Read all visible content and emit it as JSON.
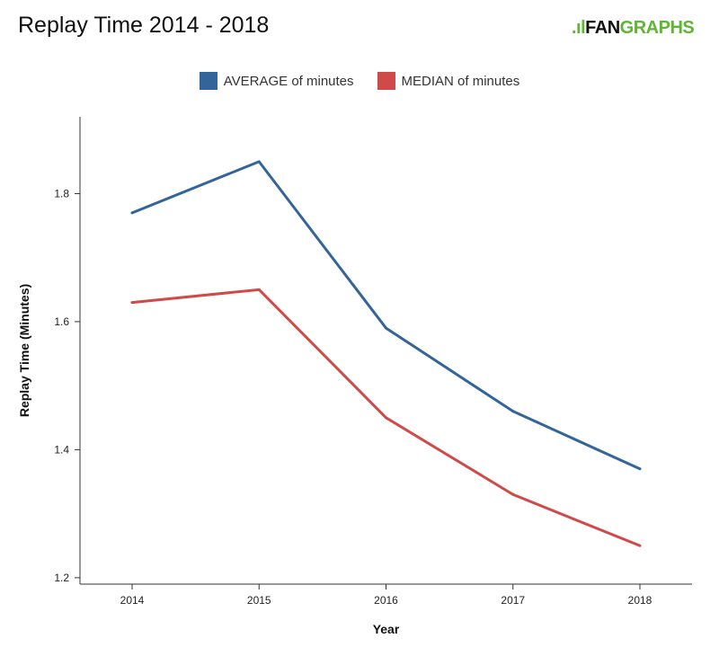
{
  "chart_data": {
    "type": "line",
    "title": "Replay Time 2014 - 2018",
    "xlabel": "Year",
    "ylabel": "Replay Time (Minutes)",
    "categories": [
      "2014",
      "2015",
      "2016",
      "2017",
      "2018"
    ],
    "yticks": [
      "1.2",
      "1.4",
      "1.6",
      "1.8"
    ],
    "ylim": [
      1.19,
      1.92
    ],
    "grid": false,
    "legend": "top-center",
    "series": [
      {
        "name": "AVERAGE of minutes",
        "color": "#33659a",
        "values": [
          1.77,
          1.85,
          1.59,
          1.46,
          1.37
        ]
      },
      {
        "name": "MEDIAN of minutes",
        "color": "#cf4a48",
        "values": [
          1.63,
          1.65,
          1.45,
          1.33,
          1.25
        ]
      }
    ]
  },
  "logo": {
    "text_a": "FAN",
    "text_b": "GRAPHS"
  }
}
